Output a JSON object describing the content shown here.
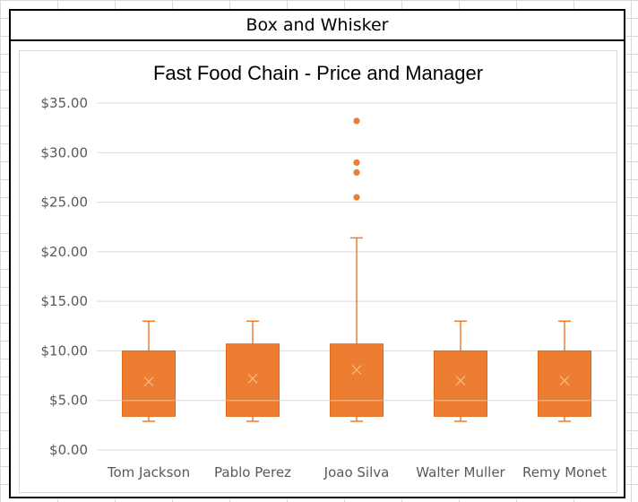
{
  "window_title": "Box and Whisker",
  "colors": {
    "box_fill": "#ED7D31",
    "line": "#ED7D31",
    "grid": "#D9D9D9",
    "axis_text": "#595959"
  },
  "chart_data": {
    "type": "box",
    "title": "Fast Food Chain - Price and Manager",
    "xlabel": "",
    "ylabel": "",
    "ylim": [
      0,
      35
    ],
    "y_ticks": [
      0,
      5,
      10,
      15,
      20,
      25,
      30,
      35
    ],
    "y_tick_labels": [
      "$0.00",
      "$5.00",
      "$10.00",
      "$15.00",
      "$20.00",
      "$25.00",
      "$30.00",
      "$35.00"
    ],
    "grid": true,
    "legend": "none",
    "categories": [
      "Tom Jackson",
      "Pablo Perez",
      "Joao Silva",
      "Walter Muller",
      "Remy Monet"
    ],
    "boxes": [
      {
        "min": 2.9,
        "q1": 3.4,
        "median": 5.0,
        "q3": 10.0,
        "max": 13.0,
        "mean": 6.9,
        "outliers": []
      },
      {
        "min": 2.9,
        "q1": 3.4,
        "median": 5.0,
        "q3": 10.7,
        "max": 13.0,
        "mean": 7.2,
        "outliers": []
      },
      {
        "min": 2.9,
        "q1": 3.4,
        "median": 5.0,
        "q3": 10.7,
        "max": 21.4,
        "mean": 8.1,
        "outliers": [
          25.5,
          28.0,
          29.0,
          33.2
        ]
      },
      {
        "min": 2.9,
        "q1": 3.4,
        "median": 5.0,
        "q3": 10.0,
        "max": 13.0,
        "mean": 7.0,
        "outliers": []
      },
      {
        "min": 2.9,
        "q1": 3.4,
        "median": 5.0,
        "q3": 10.0,
        "max": 13.0,
        "mean": 7.0,
        "outliers": []
      }
    ]
  }
}
